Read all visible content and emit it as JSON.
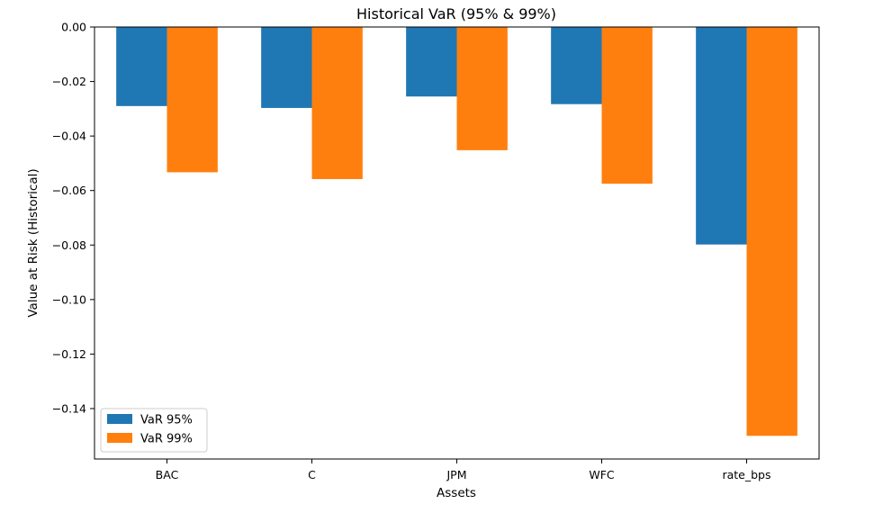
{
  "chart_data": {
    "type": "bar",
    "title": "Historical VaR (95% & 99%)",
    "xlabel": "Assets",
    "ylabel": "Value at Risk (Historical)",
    "categories": [
      "BAC",
      "C",
      "JPM",
      "WFC",
      "rate_bps"
    ],
    "series": [
      {
        "name": "VaR 95%",
        "color": "#1f77b4",
        "values": [
          -0.029,
          -0.0297,
          -0.0255,
          -0.0283,
          -0.0798
        ]
      },
      {
        "name": "VaR 99%",
        "color": "#ff7f0e",
        "values": [
          -0.0533,
          -0.0558,
          -0.0452,
          -0.0575,
          -0.15
        ]
      }
    ],
    "ylim": [
      -0.1585,
      0.0
    ],
    "yticks": [
      0.0,
      -0.02,
      -0.04,
      -0.06,
      -0.08,
      -0.1,
      -0.12,
      -0.14
    ],
    "ytick_labels": [
      "0.00",
      "−0.02",
      "−0.04",
      "−0.06",
      "−0.08",
      "−0.10",
      "−0.12",
      "−0.14"
    ],
    "grid": false,
    "legend_position": "lower-left"
  }
}
